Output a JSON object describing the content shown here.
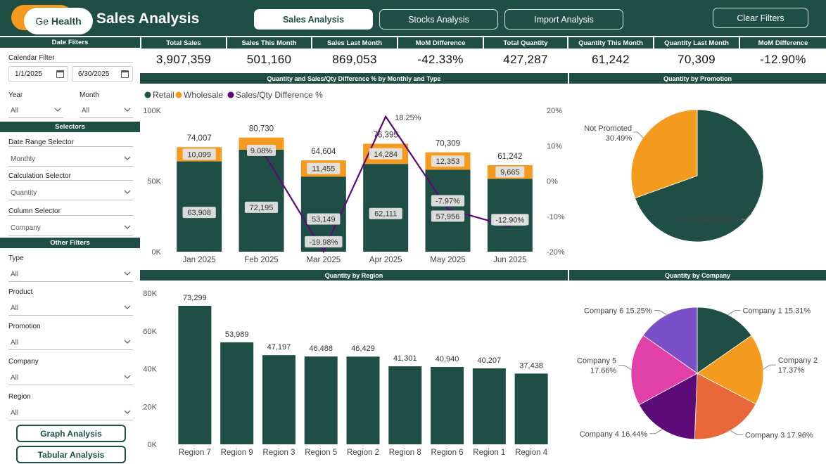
{
  "header": {
    "logo": {
      "part1": "Ge",
      "part2": "Health"
    },
    "title": "Sales Analysis",
    "nav": [
      "Sales Analysis",
      "Stocks Analysis",
      "Import Analysis"
    ],
    "clear_filters": "Clear Filters"
  },
  "colors": {
    "primary": "#1f4e45",
    "accent": "#f39a1f",
    "line": "#5b0a78",
    "magenta": "#e040a8",
    "purple": "#7b4fc8",
    "orange_red": "#e8683a"
  },
  "sidebar": {
    "date_filters": {
      "header": "Date Filters",
      "calendar_label": "Calendar Filter",
      "start_date": "1/1/2025",
      "end_date": "6/30/2025",
      "year_label": "Year",
      "year_value": "All",
      "month_label": "Month",
      "month_value": "All"
    },
    "selectors": {
      "header": "Selectors",
      "items": [
        {
          "label": "Date Range Selector",
          "value": "Monthly"
        },
        {
          "label": "Calculation Selector",
          "value": "Quantity"
        },
        {
          "label": "Column Selector",
          "value": "Company"
        }
      ]
    },
    "other_filters": {
      "header": "Other Filters",
      "items": [
        {
          "label": "Type",
          "value": "All"
        },
        {
          "label": "Product",
          "value": "All"
        },
        {
          "label": "Promotion",
          "value": "All"
        },
        {
          "label": "Company",
          "value": "All"
        },
        {
          "label": "Region",
          "value": "All"
        }
      ]
    },
    "buttons": {
      "graph": "Graph Analysis",
      "tabular": "Tabular Analysis"
    }
  },
  "kpis": [
    {
      "label": "Total Sales",
      "value": "3,907,359"
    },
    {
      "label": "Sales This Month",
      "value": "501,160"
    },
    {
      "label": "Sales Last Month",
      "value": "869,053"
    },
    {
      "label": "MoM Difference",
      "value": "-42.33%"
    },
    {
      "label": "Total Quantity",
      "value": "427,287"
    },
    {
      "label": "Quantity This Month",
      "value": "61,242"
    },
    {
      "label": "Quantity Last Month",
      "value": "70,309"
    },
    {
      "label": "MoM Difference",
      "value": "-12.90%"
    }
  ],
  "panels": {
    "monthly": "Quantity and Sales/Qty Difference % by Monthly and Type",
    "promotion": "Quantity by Promotion",
    "region": "Quantity by Region",
    "company": "Quantity by Company"
  },
  "chart_data": [
    {
      "type": "bar",
      "stacked": true,
      "title": "Quantity and Sales/Qty Difference % by Monthly and Type",
      "categories": [
        "Jan 2025",
        "Feb 2025",
        "Mar 2025",
        "Apr 2025",
        "May 2025",
        "Jun 2025"
      ],
      "series": [
        {
          "name": "Retail",
          "values": [
            63908,
            72195,
            53149,
            62111,
            57956,
            51578
          ],
          "labels": [
            "63,908",
            "72,195",
            "53,149",
            "62,111",
            "57,956",
            "51,578"
          ]
        },
        {
          "name": "Wholesale",
          "values": [
            10099,
            8535,
            11455,
            14284,
            12353,
            9665
          ],
          "labels": [
            "10,099",
            "",
            "11,455",
            "14,284",
            "12,353",
            "9,665"
          ]
        }
      ],
      "totals": [
        "74,007",
        "80,730",
        "64,604",
        "76,395",
        "70,309",
        "61,242"
      ],
      "line": {
        "name": "Sales/Qty Difference %",
        "values": [
          null,
          9.08,
          -19.98,
          18.25,
          -7.97,
          -12.9
        ],
        "labels": [
          "",
          "9.08%",
          "-19.98%",
          "18.25%",
          "-7.97%",
          "-12.90%"
        ]
      },
      "legend": [
        "Retail",
        "Wholesale",
        "Sales/Qty Difference %"
      ],
      "legend_position": "top-left",
      "ylim": [
        0,
        100000
      ],
      "y_ticks": [
        "0K",
        "50K",
        "100K"
      ],
      "y2lim": [
        -20,
        20
      ],
      "y2_ticks": [
        "-20%",
        "-10%",
        "0%",
        "10%",
        "20%"
      ],
      "grid": false
    },
    {
      "type": "pie",
      "title": "Quantity by Promotion",
      "slices": [
        {
          "label": "Promoted",
          "value": 69.51,
          "text": "Promoted 69.51%"
        },
        {
          "label": "Not Promoted",
          "value": 30.49,
          "text_line1": "Not Promoted",
          "text_line2": "30.49%"
        }
      ]
    },
    {
      "type": "bar",
      "title": "Quantity by Region",
      "categories": [
        "Region 7",
        "Region 9",
        "Region 3",
        "Region 5",
        "Region 2",
        "Region 8",
        "Region 6",
        "Region 1",
        "Region 4"
      ],
      "values": [
        73299,
        53989,
        47197,
        46488,
        46429,
        41301,
        40940,
        40207,
        37438
      ],
      "labels": [
        "73,299",
        "53,989",
        "47,197",
        "46,488",
        "46,429",
        "41,301",
        "40,940",
        "40,207",
        "37,438"
      ],
      "ylim": [
        0,
        80000
      ],
      "y_ticks": [
        "0K",
        "20K",
        "40K",
        "60K",
        "80K"
      ],
      "grid": false
    },
    {
      "type": "pie",
      "title": "Quantity by Company",
      "slices": [
        {
          "label": "Company 1",
          "value": 15.31,
          "text": "Company 1 15.31%"
        },
        {
          "label": "Company 2",
          "value": 17.37,
          "text_line1": "Company 2",
          "text_line2": "17.37%"
        },
        {
          "label": "Company 3",
          "value": 17.96,
          "text": "Company 3 17.96%"
        },
        {
          "label": "Company 4",
          "value": 16.44,
          "text": "Company 4 16.44%"
        },
        {
          "label": "Company 5",
          "value": 17.66,
          "text_line1": "Company 5",
          "text_line2": "17.66%"
        },
        {
          "label": "Company 6",
          "value": 15.25,
          "text": "Company 6 15.25%"
        }
      ]
    }
  ]
}
